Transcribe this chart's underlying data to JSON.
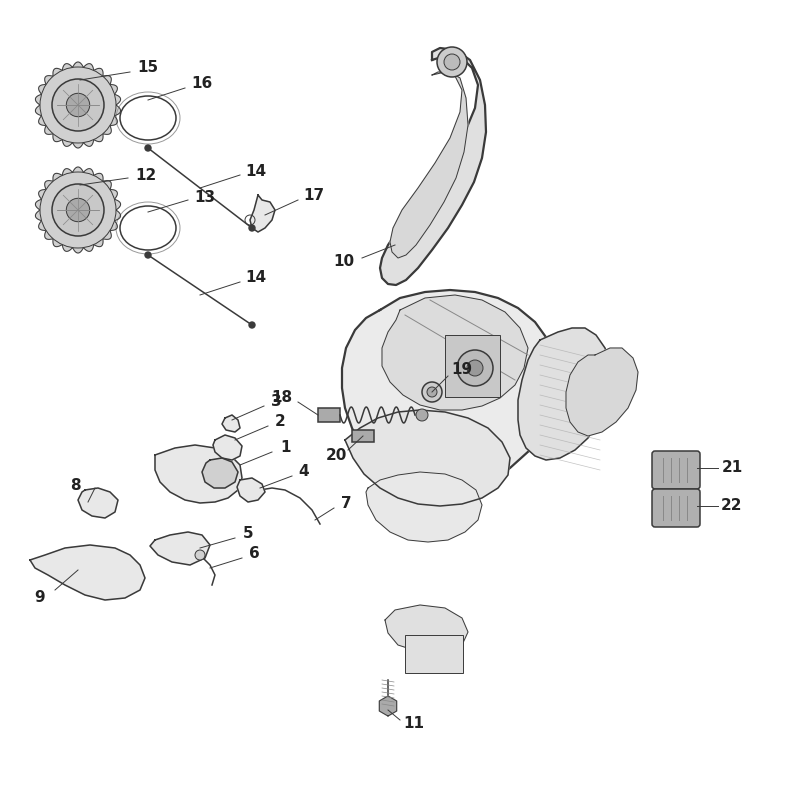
{
  "background_color": "#ffffff",
  "line_color": "#3a3a3a",
  "fig_width": 8.0,
  "fig_height": 8.0,
  "dpi": 100,
  "label_fontsize": 11,
  "label_fontweight": "bold",
  "label_color": "#222222",
  "thin_lw": 0.7,
  "med_lw": 1.1,
  "thick_lw": 1.6,
  "fill_light": "#e8e8e8",
  "fill_mid": "#d0d0d0",
  "fill_dark": "#aaaaaa"
}
